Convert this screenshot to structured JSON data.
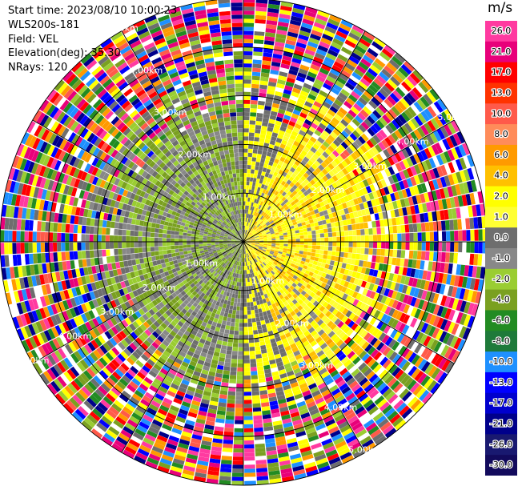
{
  "header": {
    "start_time": "Start time: 2023/08/10 10:00:23",
    "instrument": "WLS200s-181",
    "field": "Field: VEL",
    "elevation": "Elevation(deg): 35.30",
    "nrays": "NRays: 120"
  },
  "colorbar": {
    "unit": "m/s",
    "ticks": [
      "26.0",
      "21.0",
      "17.0",
      "13.0",
      "10.0",
      "8.0",
      "6.0",
      "4.0",
      "2.0",
      "1.0",
      "0.0",
      "-1.0",
      "-2.0",
      "-4.0",
      "-6.0",
      "-8.0",
      "-10.0",
      "-13.0",
      "-17.0",
      "-21.0",
      "-26.0",
      "-30.0"
    ],
    "colors": [
      "#ff3aa0",
      "#e8007a",
      "#ff0000",
      "#ff3300",
      "#ff5a4a",
      "#ff8c5a",
      "#ff9a00",
      "#ffc000",
      "#ffff00",
      "#ffff33",
      "#6e6e6e",
      "#888888",
      "#9acd32",
      "#7aa020",
      "#228b22",
      "#1e7a3a",
      "#1e90ff",
      "#0000ff",
      "#0000cd",
      "#00008b",
      "#191970",
      "#120a5c"
    ]
  },
  "chart_data": {
    "type": "heatmap",
    "title": "",
    "range_rings_labels": [
      "1.00km",
      "2.00km",
      "3.00km",
      "4.00km",
      "5.00km"
    ],
    "azimuth_lines_deg": [
      0,
      30,
      60,
      90,
      120,
      150,
      180,
      210,
      240,
      270,
      300,
      330
    ],
    "nrays": 120,
    "max_range_km": 5.0,
    "field": "VEL",
    "units": "m/s",
    "pattern": {
      "near_field_rings_km": 3.0,
      "positive_sector_center_deg": 90,
      "positive_values": "2.0 to 4.0",
      "negative_values": "-1.0 to -4.0",
      "far_field": "noise"
    }
  },
  "colors": {
    "grid": "#000000",
    "label": "#ffffff"
  }
}
